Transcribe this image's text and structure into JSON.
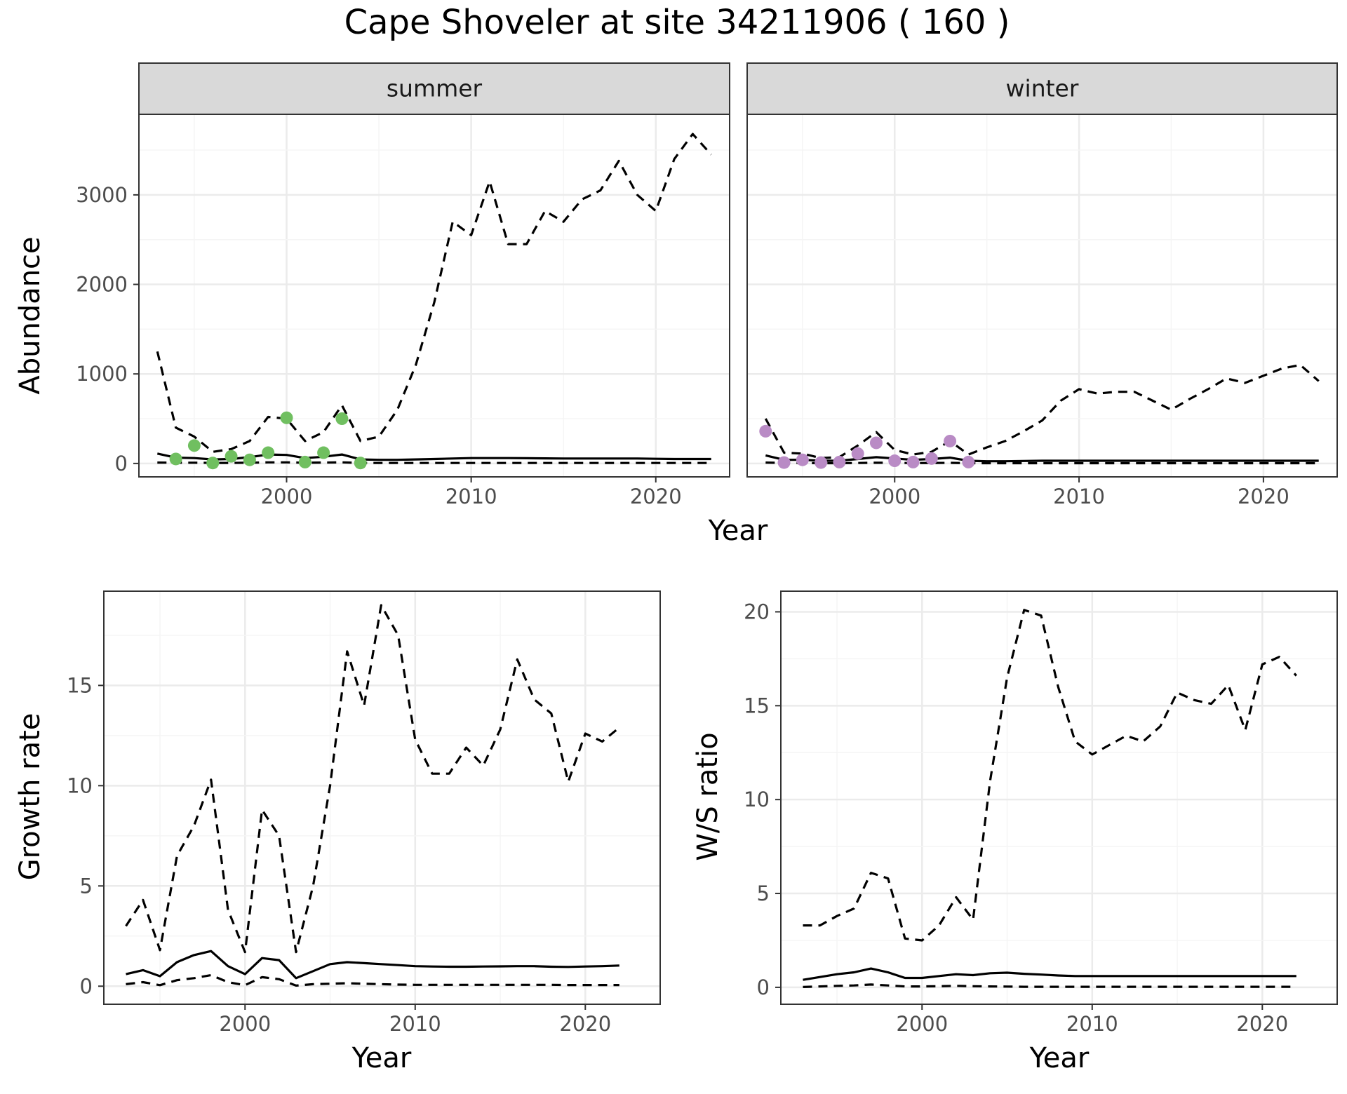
{
  "title": "Cape Shoveler at site 34211906 ( 160 )",
  "colors": {
    "summer_points": "#70bf60",
    "winter_points": "#b98bc5",
    "line": "#000000",
    "grid_major": "#ebebeb",
    "grid_minor": "#f5f5f5",
    "strip_fill": "#d9d9d9",
    "panel_border": "#333333"
  },
  "chart_data": [
    {
      "type": "line",
      "panel": "summer",
      "strip_label": "summer",
      "ylabel": "Abundance",
      "xlabel": "Year",
      "xlim": [
        1992,
        2024
      ],
      "ylim": [
        -150,
        3900
      ],
      "xticks": [
        2000,
        2010,
        2020
      ],
      "yticks": [
        0,
        1000,
        2000,
        3000
      ],
      "series": [
        {
          "role": "upper",
          "style": "dashed",
          "x": [
            1993,
            1994,
            1995,
            1996,
            1997,
            1998,
            1999,
            2000,
            2001,
            2002,
            2003,
            2004,
            2005,
            2006,
            2007,
            2008,
            2009,
            2010,
            2011,
            2012,
            2013,
            2014,
            2015,
            2016,
            2017,
            2018,
            2019,
            2020,
            2021,
            2022,
            2023
          ],
          "y": [
            1250,
            400,
            300,
            130,
            160,
            250,
            520,
            500,
            250,
            350,
            650,
            250,
            300,
            600,
            1100,
            1800,
            2700,
            2550,
            3150,
            2450,
            2450,
            2820,
            2700,
            2950,
            3050,
            3380,
            3000,
            2820,
            3400,
            3680,
            3450
          ]
        },
        {
          "role": "mean",
          "style": "solid",
          "x": [
            1993,
            1994,
            1995,
            1996,
            1997,
            1998,
            1999,
            2000,
            2001,
            2002,
            2003,
            2004,
            2005,
            2006,
            2007,
            2008,
            2009,
            2010,
            2011,
            2012,
            2013,
            2014,
            2015,
            2016,
            2017,
            2018,
            2019,
            2020,
            2021,
            2022,
            2023
          ],
          "y": [
            110,
            65,
            60,
            45,
            50,
            70,
            100,
            95,
            60,
            75,
            100,
            45,
            40,
            40,
            45,
            50,
            55,
            60,
            60,
            60,
            58,
            57,
            55,
            55,
            55,
            55,
            55,
            52,
            50,
            50,
            50
          ]
        },
        {
          "role": "lower",
          "style": "dashed",
          "x": [
            1993,
            1994,
            1995,
            1996,
            1997,
            1998,
            1999,
            2000,
            2001,
            2002,
            2003,
            2004,
            2005,
            2006,
            2007,
            2008,
            2009,
            2010,
            2011,
            2012,
            2013,
            2014,
            2015,
            2016,
            2017,
            2018,
            2019,
            2020,
            2021,
            2022,
            2023
          ],
          "y": [
            10,
            8,
            8,
            6,
            6,
            8,
            12,
            12,
            8,
            10,
            12,
            5,
            5,
            5,
            5,
            5,
            5,
            5,
            5,
            5,
            5,
            5,
            5,
            5,
            5,
            5,
            5,
            5,
            5,
            5,
            5
          ]
        }
      ],
      "points": {
        "x": [
          1994,
          1995,
          1996,
          1997,
          1998,
          1999,
          2000,
          2001,
          2002,
          2003,
          2004
        ],
        "y": [
          50,
          200,
          5,
          80,
          40,
          120,
          510,
          15,
          120,
          500,
          5
        ]
      }
    },
    {
      "type": "line",
      "panel": "winter",
      "strip_label": "winter",
      "ylabel": "",
      "xlabel": "Year",
      "xlim": [
        1992,
        2024
      ],
      "ylim": [
        -150,
        3900
      ],
      "xticks": [
        2000,
        2010,
        2020
      ],
      "yticks": [],
      "series": [
        {
          "role": "upper",
          "style": "dashed",
          "x": [
            1993,
            1994,
            1995,
            1996,
            1997,
            1998,
            1999,
            2000,
            2001,
            2002,
            2003,
            2004,
            2005,
            2006,
            2007,
            2008,
            2009,
            2010,
            2011,
            2012,
            2013,
            2014,
            2015,
            2016,
            2017,
            2018,
            2019,
            2020,
            2021,
            2022,
            2023
          ],
          "y": [
            500,
            120,
            110,
            60,
            70,
            200,
            350,
            150,
            100,
            130,
            250,
            100,
            180,
            250,
            360,
            480,
            700,
            830,
            780,
            800,
            800,
            700,
            600,
            720,
            830,
            950,
            900,
            980,
            1060,
            1100,
            920
          ]
        },
        {
          "role": "mean",
          "style": "solid",
          "x": [
            1993,
            1994,
            1995,
            1996,
            1997,
            1998,
            1999,
            2000,
            2001,
            2002,
            2003,
            2004,
            2005,
            2006,
            2007,
            2008,
            2009,
            2010,
            2011,
            2012,
            2013,
            2014,
            2015,
            2016,
            2017,
            2018,
            2019,
            2020,
            2021,
            2022,
            2023
          ],
          "y": [
            90,
            40,
            40,
            30,
            30,
            50,
            70,
            55,
            40,
            50,
            65,
            30,
            25,
            25,
            28,
            30,
            30,
            30,
            30,
            30,
            30,
            30,
            30,
            30,
            30,
            30,
            30,
            30,
            30,
            30,
            30
          ]
        },
        {
          "role": "lower",
          "style": "dashed",
          "x": [
            1993,
            1994,
            1995,
            1996,
            1997,
            1998,
            1999,
            2000,
            2001,
            2002,
            2003,
            2004,
            2005,
            2006,
            2007,
            2008,
            2009,
            2010,
            2011,
            2012,
            2013,
            2014,
            2015,
            2016,
            2017,
            2018,
            2019,
            2020,
            2021,
            2022,
            2023
          ],
          "y": [
            10,
            5,
            5,
            3,
            3,
            5,
            8,
            6,
            4,
            5,
            7,
            3,
            3,
            3,
            3,
            3,
            3,
            3,
            3,
            3,
            3,
            3,
            3,
            3,
            3,
            3,
            3,
            3,
            3,
            3,
            3
          ]
        }
      ],
      "points": {
        "x": [
          1993,
          1994,
          1995,
          1996,
          1997,
          1998,
          1999,
          2000,
          2001,
          2002,
          2003,
          2004
        ],
        "y": [
          360,
          10,
          40,
          10,
          15,
          110,
          230,
          30,
          15,
          55,
          250,
          15
        ]
      }
    },
    {
      "type": "line",
      "panel": "growth",
      "ylabel": "Growth rate",
      "xlabel": "Year",
      "xlim": [
        1991.7,
        2024.4
      ],
      "ylim": [
        -0.9,
        19.7
      ],
      "xticks": [
        2000,
        2010,
        2020
      ],
      "yticks": [
        0,
        5,
        10,
        15
      ],
      "series": [
        {
          "role": "upper",
          "style": "dashed",
          "x": [
            1993,
            1994,
            1995,
            1996,
            1997,
            1998,
            1999,
            2000,
            2001,
            2002,
            2003,
            2004,
            2005,
            2006,
            2007,
            2008,
            2009,
            2010,
            2011,
            2012,
            2013,
            2014,
            2015,
            2016,
            2017,
            2018,
            2019,
            2020,
            2021,
            2022
          ],
          "y": [
            3.0,
            4.3,
            1.8,
            6.5,
            8.0,
            10.3,
            3.8,
            1.7,
            8.8,
            7.5,
            1.7,
            5.0,
            10.0,
            16.7,
            14.0,
            19.0,
            17.5,
            12.3,
            10.6,
            10.6,
            11.9,
            11.0,
            12.8,
            16.3,
            14.3,
            13.6,
            10.2,
            12.6,
            12.2,
            12.9
          ]
        },
        {
          "role": "mean",
          "style": "solid",
          "x": [
            1993,
            1994,
            1995,
            1996,
            1997,
            1998,
            1999,
            2000,
            2001,
            2002,
            2003,
            2004,
            2005,
            2006,
            2007,
            2008,
            2009,
            2010,
            2011,
            2012,
            2013,
            2014,
            2015,
            2016,
            2017,
            2018,
            2019,
            2020,
            2021,
            2022
          ],
          "y": [
            0.6,
            0.8,
            0.5,
            1.2,
            1.55,
            1.75,
            1.0,
            0.6,
            1.4,
            1.3,
            0.4,
            0.75,
            1.1,
            1.2,
            1.15,
            1.1,
            1.05,
            1.0,
            0.98,
            0.97,
            0.97,
            0.98,
            0.99,
            1.0,
            1.0,
            0.97,
            0.96,
            0.98,
            1.0,
            1.03
          ]
        },
        {
          "role": "lower",
          "style": "dashed",
          "x": [
            1993,
            1994,
            1995,
            1996,
            1997,
            1998,
            1999,
            2000,
            2001,
            2002,
            2003,
            2004,
            2005,
            2006,
            2007,
            2008,
            2009,
            2010,
            2011,
            2012,
            2013,
            2014,
            2015,
            2016,
            2017,
            2018,
            2019,
            2020,
            2021,
            2022
          ],
          "y": [
            0.1,
            0.2,
            0.05,
            0.3,
            0.4,
            0.55,
            0.2,
            0.05,
            0.45,
            0.35,
            0.03,
            0.1,
            0.12,
            0.15,
            0.12,
            0.1,
            0.08,
            0.07,
            0.07,
            0.07,
            0.07,
            0.07,
            0.07,
            0.07,
            0.07,
            0.07,
            0.06,
            0.06,
            0.06,
            0.06
          ]
        }
      ]
    },
    {
      "type": "line",
      "panel": "ratio",
      "ylabel": "W/S ratio",
      "xlabel": "Year",
      "xlim": [
        1991.7,
        2024.4
      ],
      "ylim": [
        -0.9,
        21.1
      ],
      "xticks": [
        2000,
        2010,
        2020
      ],
      "yticks": [
        0,
        5,
        10,
        15,
        20
      ],
      "series": [
        {
          "role": "upper",
          "style": "dashed",
          "x": [
            1993,
            1994,
            1995,
            1996,
            1997,
            1998,
            1999,
            2000,
            2001,
            2002,
            2003,
            2004,
            2005,
            2006,
            2007,
            2008,
            2009,
            2010,
            2011,
            2012,
            2013,
            2014,
            2015,
            2016,
            2017,
            2018,
            2019,
            2020,
            2021,
            2022
          ],
          "y": [
            3.3,
            3.3,
            3.8,
            4.2,
            6.1,
            5.8,
            2.6,
            2.5,
            3.3,
            4.8,
            3.6,
            11.0,
            16.5,
            20.1,
            19.8,
            16.0,
            13.1,
            12.4,
            12.9,
            13.4,
            13.1,
            13.9,
            15.7,
            15.3,
            15.1,
            16.1,
            13.7,
            17.2,
            17.6,
            16.6
          ]
        },
        {
          "role": "mean",
          "style": "solid",
          "x": [
            1993,
            1994,
            1995,
            1996,
            1997,
            1998,
            1999,
            2000,
            2001,
            2002,
            2003,
            2004,
            2005,
            2006,
            2007,
            2008,
            2009,
            2010,
            2011,
            2012,
            2013,
            2014,
            2015,
            2016,
            2017,
            2018,
            2019,
            2020,
            2021,
            2022
          ],
          "y": [
            0.4,
            0.55,
            0.7,
            0.8,
            1.0,
            0.8,
            0.5,
            0.5,
            0.6,
            0.7,
            0.65,
            0.75,
            0.78,
            0.72,
            0.68,
            0.63,
            0.6,
            0.6,
            0.6,
            0.6,
            0.6,
            0.6,
            0.6,
            0.6,
            0.6,
            0.6,
            0.6,
            0.6,
            0.6,
            0.6
          ]
        },
        {
          "role": "lower",
          "style": "dashed",
          "x": [
            1993,
            1994,
            1995,
            1996,
            1997,
            1998,
            1999,
            2000,
            2001,
            2002,
            2003,
            2004,
            2005,
            2006,
            2007,
            2008,
            2009,
            2010,
            2011,
            2012,
            2013,
            2014,
            2015,
            2016,
            2017,
            2018,
            2019,
            2020,
            2021,
            2022
          ],
          "y": [
            0.02,
            0.05,
            0.08,
            0.1,
            0.15,
            0.1,
            0.05,
            0.05,
            0.06,
            0.08,
            0.06,
            0.05,
            0.04,
            0.03,
            0.03,
            0.03,
            0.03,
            0.03,
            0.03,
            0.03,
            0.03,
            0.03,
            0.03,
            0.03,
            0.03,
            0.03,
            0.03,
            0.03,
            0.03,
            0.03
          ]
        }
      ]
    }
  ]
}
